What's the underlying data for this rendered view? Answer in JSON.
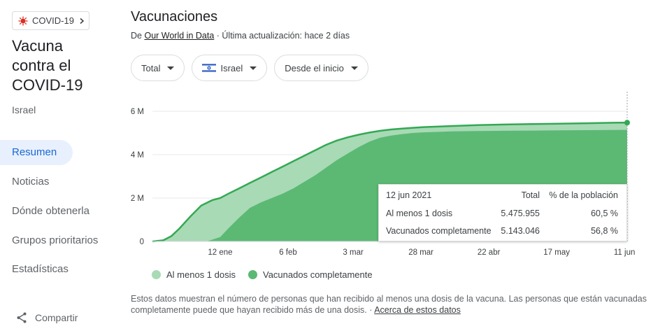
{
  "sidebar": {
    "chip_label": "COVID-19",
    "title_lines": [
      "Vacuna",
      "contra el",
      "COVID-19"
    ],
    "subtitle": "Israel",
    "nav": [
      {
        "label": "Resumen",
        "active": true
      },
      {
        "label": "Noticias",
        "active": false
      },
      {
        "label": "Dónde obtenerla",
        "active": false
      },
      {
        "label": "Grupos prioritarios",
        "active": false
      },
      {
        "label": "Estadísticas",
        "active": false
      }
    ],
    "share_label": "Compartir"
  },
  "main": {
    "title": "Vacunaciones",
    "source_prefix": "De",
    "source_link": "Our World in Data",
    "source_suffix": "· Última actualización: hace 2 días",
    "filters": [
      {
        "label": "Total"
      },
      {
        "label": "Israel"
      },
      {
        "label": "Desde el inicio"
      }
    ]
  },
  "tooltip": {
    "date": "12 jun 2021",
    "col_total": "Total",
    "col_pct": "% de la población",
    "rows": [
      {
        "label": "Al menos 1 dosis",
        "total": "5.475.955",
        "pct": "60,5 %"
      },
      {
        "label": "Vacunados completamente",
        "total": "5.143.046",
        "pct": "56,8 %"
      }
    ]
  },
  "footnote": {
    "text": "Estos datos muestran el número de personas que han recibido al menos una dosis de la vacuna. Las personas que están vacunadas completamente puede que hayan recibido más de una dosis.",
    "sep": "·",
    "link": "Acerca de estos datos"
  },
  "colors": {
    "light_green": "#a8dab5",
    "dark_green": "#5bb974",
    "line_green": "#34a853"
  },
  "chart_data": {
    "type": "area",
    "y_ticks": [
      "0",
      "2 M",
      "4 M",
      "6 M"
    ],
    "y_tick_values": [
      0,
      2000000,
      4000000,
      6000000
    ],
    "ylim": [
      0,
      6000000
    ],
    "x_ticks": [
      "12 ene",
      "6 feb",
      "3 mar",
      "28 mar",
      "22 abr",
      "17 may",
      "11 jun"
    ],
    "x_tick_days": [
      25,
      50,
      74,
      99,
      124,
      149,
      174
    ],
    "xlim": [
      0,
      175
    ],
    "series": [
      {
        "name": "Al menos 1 dosis",
        "days": [
          0,
          4,
          7,
          10,
          14,
          18,
          22,
          25,
          28,
          32,
          36,
          40,
          44,
          48,
          52,
          56,
          60,
          64,
          68,
          72,
          76,
          80,
          84,
          88,
          92,
          96,
          100,
          110,
          120,
          130,
          140,
          150,
          160,
          170,
          175
        ],
        "values": [
          0,
          50000,
          250000,
          600000,
          1150000,
          1650000,
          1900000,
          2000000,
          2200000,
          2450000,
          2700000,
          2950000,
          3200000,
          3450000,
          3700000,
          3950000,
          4200000,
          4450000,
          4650000,
          4800000,
          4920000,
          5020000,
          5100000,
          5160000,
          5200000,
          5240000,
          5270000,
          5320000,
          5360000,
          5390000,
          5410000,
          5430000,
          5450000,
          5470000,
          5475955
        ]
      },
      {
        "name": "Vacunados completamente",
        "days": [
          0,
          20,
          25,
          28,
          32,
          36,
          40,
          44,
          48,
          52,
          56,
          60,
          64,
          68,
          72,
          76,
          80,
          84,
          88,
          92,
          96,
          100,
          110,
          120,
          130,
          140,
          150,
          160,
          170,
          175
        ],
        "values": [
          0,
          0,
          200000,
          600000,
          1100000,
          1550000,
          1800000,
          2000000,
          2200000,
          2450000,
          2750000,
          3050000,
          3400000,
          3750000,
          4050000,
          4350000,
          4600000,
          4780000,
          4880000,
          4950000,
          5000000,
          5030000,
          5070000,
          5090000,
          5100000,
          5110000,
          5120000,
          5130000,
          5140000,
          5143046
        ]
      }
    ]
  }
}
